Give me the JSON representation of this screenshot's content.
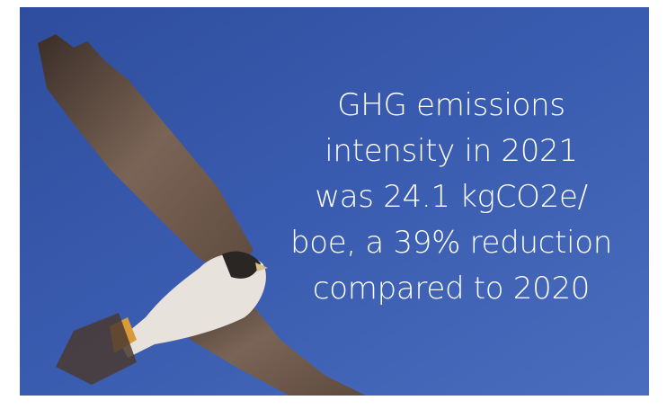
{
  "overlay": {
    "lines": [
      "GHG emissions",
      "intensity in 2021",
      "was 24.1 kgCO2e/",
      "boe, a 39% reduction",
      "compared to 2020"
    ]
  }
}
